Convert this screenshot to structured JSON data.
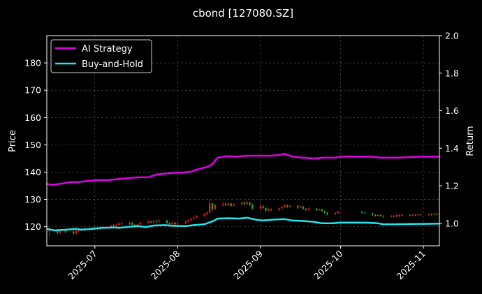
{
  "chart_data": {
    "type": "line",
    "title": "cbond [127080.SZ]",
    "ylabel_left": "Price",
    "ylabel_right": "Return",
    "xlabel": "",
    "x_range": [
      "2025-06-13",
      "2025-11-07"
    ],
    "ylim_left": [
      113,
      190
    ],
    "ylim_right": [
      0.88,
      2.0
    ],
    "yticks_left": [
      120,
      130,
      140,
      150,
      160,
      170,
      180
    ],
    "yticks_right": [
      1.0,
      1.2,
      1.4,
      1.6,
      1.8,
      2.0
    ],
    "xticks": [
      "2025-07",
      "2025-08",
      "2025-09",
      "2025-10",
      "2025-11"
    ],
    "grid": true,
    "legend_position": "top-left",
    "colors": {
      "background": "#000000",
      "ai_strategy": "#e000e6",
      "buy_and_hold": "#22e6ee",
      "candle_up": "#e41a1c",
      "candle_down": "#2ca02c",
      "grid": "#555555"
    },
    "series": [
      {
        "name": "AI Strategy",
        "axis": "right",
        "points": [
          [
            "2025-06-13",
            1.21
          ],
          [
            "2025-06-15",
            1.205
          ],
          [
            "2025-06-18",
            1.21
          ],
          [
            "2025-06-22",
            1.22
          ],
          [
            "2025-06-25",
            1.22
          ],
          [
            "2025-06-28",
            1.225
          ],
          [
            "2025-07-02",
            1.23
          ],
          [
            "2025-07-06",
            1.23
          ],
          [
            "2025-07-09",
            1.235
          ],
          [
            "2025-07-13",
            1.24
          ],
          [
            "2025-07-17",
            1.245
          ],
          [
            "2025-07-21",
            1.245
          ],
          [
            "2025-07-24",
            1.26
          ],
          [
            "2025-07-28",
            1.265
          ],
          [
            "2025-07-31",
            1.27
          ],
          [
            "2025-08-03",
            1.27
          ],
          [
            "2025-08-06",
            1.275
          ],
          [
            "2025-08-09",
            1.29
          ],
          [
            "2025-08-12",
            1.3
          ],
          [
            "2025-08-14",
            1.315
          ],
          [
            "2025-08-16",
            1.35
          ],
          [
            "2025-08-19",
            1.357
          ],
          [
            "2025-08-23",
            1.355
          ],
          [
            "2025-08-27",
            1.36
          ],
          [
            "2025-09-01",
            1.36
          ],
          [
            "2025-09-05",
            1.36
          ],
          [
            "2025-09-08",
            1.365
          ],
          [
            "2025-09-10",
            1.37
          ],
          [
            "2025-09-13",
            1.355
          ],
          [
            "2025-09-17",
            1.35
          ],
          [
            "2025-09-21",
            1.345
          ],
          [
            "2025-09-25",
            1.35
          ],
          [
            "2025-09-29",
            1.35
          ],
          [
            "2025-10-01",
            1.355
          ],
          [
            "2025-10-06",
            1.355
          ],
          [
            "2025-10-12",
            1.355
          ],
          [
            "2025-10-16",
            1.35
          ],
          [
            "2025-10-22",
            1.35
          ],
          [
            "2025-10-27",
            1.353
          ],
          [
            "2025-11-01",
            1.355
          ],
          [
            "2025-11-07",
            1.355
          ]
        ]
      },
      {
        "name": "Buy-and-Hold",
        "axis": "right",
        "points": [
          [
            "2025-06-13",
            0.97
          ],
          [
            "2025-06-16",
            0.962
          ],
          [
            "2025-06-19",
            0.965
          ],
          [
            "2025-06-24",
            0.97
          ],
          [
            "2025-06-26",
            0.966
          ],
          [
            "2025-06-30",
            0.97
          ],
          [
            "2025-07-04",
            0.976
          ],
          [
            "2025-07-08",
            0.978
          ],
          [
            "2025-07-10",
            0.976
          ],
          [
            "2025-07-13",
            0.98
          ],
          [
            "2025-07-17",
            0.985
          ],
          [
            "2025-07-20",
            0.98
          ],
          [
            "2025-07-23",
            0.988
          ],
          [
            "2025-07-27",
            0.99
          ],
          [
            "2025-07-31",
            0.986
          ],
          [
            "2025-08-04",
            0.985
          ],
          [
            "2025-08-07",
            0.99
          ],
          [
            "2025-08-11",
            0.995
          ],
          [
            "2025-08-14",
            1.01
          ],
          [
            "2025-08-16",
            1.025
          ],
          [
            "2025-08-20",
            1.027
          ],
          [
            "2025-08-24",
            1.025
          ],
          [
            "2025-08-27",
            1.03
          ],
          [
            "2025-08-30",
            1.02
          ],
          [
            "2025-09-02",
            1.015
          ],
          [
            "2025-09-06",
            1.02
          ],
          [
            "2025-09-10",
            1.022
          ],
          [
            "2025-09-13",
            1.015
          ],
          [
            "2025-09-17",
            1.012
          ],
          [
            "2025-09-21",
            1.008
          ],
          [
            "2025-09-24",
            1.0
          ],
          [
            "2025-09-28",
            1.0
          ],
          [
            "2025-10-01",
            1.004
          ],
          [
            "2025-10-06",
            1.004
          ],
          [
            "2025-10-11",
            1.003
          ],
          [
            "2025-10-15",
            1.0
          ],
          [
            "2025-10-17",
            0.995
          ],
          [
            "2025-10-21",
            0.995
          ],
          [
            "2025-10-27",
            0.996
          ],
          [
            "2025-11-01",
            0.997
          ],
          [
            "2025-11-07",
            0.998
          ]
        ]
      }
    ],
    "candles": [
      [
        "2025-06-14",
        118.3,
        119.2,
        116.5,
        119.8
      ],
      [
        "2025-06-17",
        118.6,
        117.8,
        117.2,
        119.2
      ],
      [
        "2025-06-18",
        117.8,
        118.7,
        117.4,
        119.1
      ],
      [
        "2025-06-20",
        118.7,
        118.2,
        117.5,
        119.0
      ],
      [
        "2025-06-23",
        118.2,
        117.6,
        117.0,
        118.6
      ],
      [
        "2025-06-24",
        117.6,
        118.4,
        117.2,
        118.9
      ],
      [
        "2025-06-25",
        118.4,
        118.8,
        118.0,
        119.3
      ],
      [
        "2025-06-26",
        118.8,
        119.3,
        118.4,
        119.6
      ],
      [
        "2025-06-27",
        119.3,
        119.0,
        118.5,
        119.8
      ],
      [
        "2025-06-30",
        119.0,
        119.6,
        118.8,
        120.0
      ],
      [
        "2025-07-01",
        119.6,
        119.2,
        118.9,
        120.1
      ],
      [
        "2025-07-02",
        119.2,
        119.8,
        119.0,
        120.2
      ],
      [
        "2025-07-03",
        119.8,
        119.5,
        119.1,
        120.2
      ],
      [
        "2025-07-04",
        119.5,
        119.9,
        119.2,
        120.4
      ],
      [
        "2025-07-07",
        119.9,
        120.4,
        119.6,
        120.8
      ],
      [
        "2025-07-08",
        120.4,
        120.1,
        119.8,
        120.9
      ],
      [
        "2025-07-09",
        120.1,
        120.7,
        119.9,
        121.1
      ],
      [
        "2025-07-10",
        120.7,
        121.2,
        120.4,
        121.6
      ],
      [
        "2025-07-11",
        121.2,
        120.9,
        120.5,
        121.5
      ],
      [
        "2025-07-14",
        120.9,
        121.5,
        120.6,
        121.9
      ],
      [
        "2025-07-15",
        121.5,
        120.7,
        120.3,
        121.8
      ],
      [
        "2025-07-16",
        120.7,
        120.2,
        119.8,
        121.0
      ],
      [
        "2025-07-17",
        120.2,
        120.9,
        119.9,
        121.3
      ],
      [
        "2025-07-18",
        120.9,
        121.4,
        120.6,
        121.8
      ],
      [
        "2025-07-21",
        121.4,
        121.9,
        121.1,
        122.3
      ],
      [
        "2025-07-22",
        121.9,
        121.6,
        121.2,
        122.2
      ],
      [
        "2025-07-23",
        121.6,
        122.1,
        121.3,
        122.4
      ],
      [
        "2025-07-24",
        122.1,
        121.8,
        121.4,
        122.5
      ],
      [
        "2025-07-25",
        121.8,
        122.3,
        121.5,
        122.6
      ],
      [
        "2025-07-28",
        122.3,
        121.4,
        121.0,
        122.5
      ],
      [
        "2025-07-29",
        121.4,
        120.9,
        120.5,
        121.6
      ],
      [
        "2025-07-30",
        120.9,
        121.5,
        120.6,
        121.9
      ],
      [
        "2025-07-31",
        121.5,
        120.8,
        120.4,
        121.7
      ],
      [
        "2025-08-01",
        120.8,
        121.3,
        120.5,
        121.6
      ],
      [
        "2025-08-04",
        121.3,
        121.9,
        121.0,
        122.3
      ],
      [
        "2025-08-05",
        121.9,
        122.4,
        121.6,
        122.8
      ],
      [
        "2025-08-06",
        122.4,
        122.9,
        122.1,
        123.2
      ],
      [
        "2025-08-07",
        122.9,
        123.4,
        122.6,
        123.8
      ],
      [
        "2025-08-08",
        123.4,
        124.0,
        123.1,
        124.3
      ],
      [
        "2025-08-11",
        124.0,
        124.6,
        123.7,
        125.0
      ],
      [
        "2025-08-12",
        124.6,
        125.2,
        124.3,
        125.6
      ],
      [
        "2025-08-13",
        125.2,
        128.5,
        124.9,
        130.0
      ],
      [
        "2025-08-14",
        128.5,
        126.5,
        125.8,
        128.9
      ],
      [
        "2025-08-15",
        126.5,
        128.0,
        126.2,
        128.4
      ],
      [
        "2025-08-18",
        128.0,
        128.4,
        127.4,
        129.0
      ],
      [
        "2025-08-19",
        128.4,
        127.9,
        127.5,
        128.9
      ],
      [
        "2025-08-20",
        127.9,
        128.5,
        127.6,
        128.8
      ],
      [
        "2025-08-21",
        128.5,
        127.7,
        127.2,
        128.7
      ],
      [
        "2025-08-22",
        127.7,
        128.2,
        127.4,
        128.6
      ],
      [
        "2025-08-25",
        128.2,
        128.8,
        127.9,
        129.2
      ],
      [
        "2025-08-26",
        128.8,
        128.3,
        127.8,
        129.3
      ],
      [
        "2025-08-27",
        128.3,
        128.9,
        128.0,
        129.4
      ],
      [
        "2025-08-28",
        128.9,
        128.1,
        127.6,
        129.1
      ],
      [
        "2025-08-29",
        128.1,
        126.7,
        126.3,
        128.3
      ],
      [
        "2025-09-01",
        126.7,
        127.5,
        126.4,
        128.1
      ],
      [
        "2025-09-02",
        127.5,
        126.9,
        126.5,
        127.8
      ],
      [
        "2025-09-03",
        126.9,
        125.9,
        125.4,
        127.1
      ],
      [
        "2025-09-04",
        125.9,
        126.4,
        125.6,
        126.8
      ],
      [
        "2025-09-05",
        126.4,
        126.1,
        125.7,
        126.7
      ],
      [
        "2025-09-08",
        126.1,
        126.7,
        125.8,
        127.1
      ],
      [
        "2025-09-09",
        126.7,
        127.2,
        126.4,
        127.6
      ],
      [
        "2025-09-10",
        127.2,
        127.8,
        126.9,
        128.2
      ],
      [
        "2025-09-11",
        127.8,
        127.3,
        126.8,
        128.1
      ],
      [
        "2025-09-12",
        127.3,
        127.7,
        127.0,
        128.0
      ],
      [
        "2025-09-15",
        127.7,
        127.0,
        126.6,
        127.9
      ],
      [
        "2025-09-16",
        127.0,
        127.4,
        126.7,
        127.8
      ],
      [
        "2025-09-17",
        127.4,
        126.6,
        126.2,
        127.6
      ],
      [
        "2025-09-18",
        126.6,
        126.2,
        125.8,
        126.8
      ],
      [
        "2025-09-19",
        126.2,
        126.6,
        125.9,
        127.0
      ],
      [
        "2025-09-22",
        126.6,
        126.1,
        125.7,
        126.8
      ],
      [
        "2025-09-23",
        126.1,
        126.4,
        125.8,
        126.7
      ],
      [
        "2025-09-24",
        126.4,
        125.8,
        125.4,
        126.6
      ],
      [
        "2025-09-25",
        125.8,
        125.2,
        124.8,
        126.0
      ],
      [
        "2025-09-26",
        125.2,
        124.6,
        124.1,
        125.4
      ],
      [
        "2025-09-29",
        124.6,
        125.0,
        124.3,
        125.3
      ],
      [
        "2025-09-30",
        125.0,
        125.5,
        124.7,
        125.9
      ],
      [
        "2025-10-09",
        125.5,
        125.1,
        124.7,
        125.7
      ],
      [
        "2025-10-10",
        125.1,
        124.9,
        124.5,
        125.3
      ],
      [
        "2025-10-13",
        124.9,
        124.4,
        124.0,
        125.1
      ],
      [
        "2025-10-14",
        124.4,
        124.0,
        123.6,
        124.6
      ],
      [
        "2025-10-15",
        124.0,
        124.3,
        123.7,
        124.6
      ],
      [
        "2025-10-16",
        124.3,
        124.0,
        123.6,
        124.5
      ],
      [
        "2025-10-17",
        124.0,
        123.7,
        123.3,
        124.2
      ],
      [
        "2025-10-20",
        123.7,
        124.0,
        123.4,
        124.3
      ],
      [
        "2025-10-21",
        124.0,
        123.8,
        123.4,
        124.2
      ],
      [
        "2025-10-22",
        123.8,
        124.2,
        123.5,
        124.5
      ],
      [
        "2025-10-23",
        124.2,
        124.0,
        123.6,
        124.4
      ],
      [
        "2025-10-24",
        124.0,
        124.4,
        123.7,
        124.7
      ],
      [
        "2025-10-27",
        124.4,
        124.1,
        123.8,
        124.6
      ],
      [
        "2025-10-28",
        124.1,
        124.4,
        123.8,
        124.7
      ],
      [
        "2025-10-29",
        124.4,
        124.2,
        123.9,
        124.6
      ],
      [
        "2025-10-30",
        124.2,
        124.5,
        123.9,
        124.8
      ],
      [
        "2025-10-31",
        124.5,
        124.3,
        124.0,
        124.7
      ],
      [
        "2025-11-03",
        124.3,
        124.6,
        124.0,
        124.9
      ],
      [
        "2025-11-04",
        124.6,
        124.4,
        124.1,
        124.8
      ],
      [
        "2025-11-05",
        124.4,
        124.7,
        124.1,
        125.0
      ],
      [
        "2025-11-06",
        124.7,
        124.5,
        124.2,
        124.9
      ],
      [
        "2025-11-07",
        124.5,
        124.8,
        124.2,
        125.1
      ]
    ]
  }
}
